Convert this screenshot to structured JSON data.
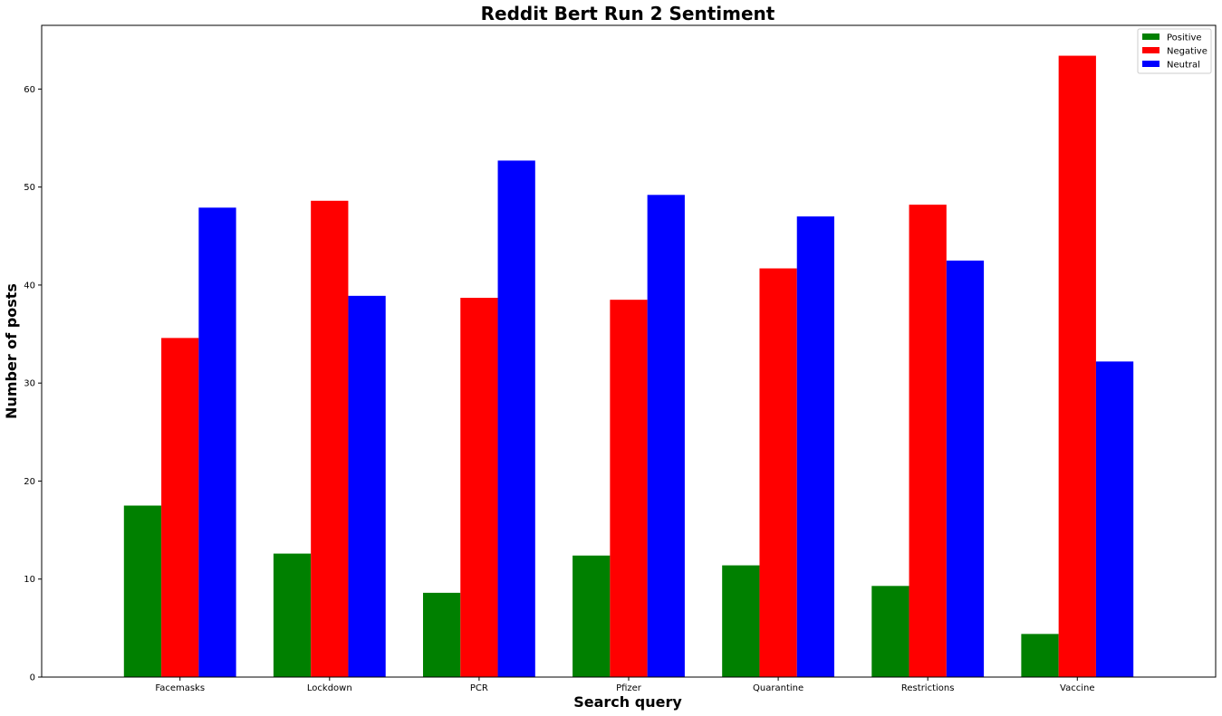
{
  "chart_data": {
    "type": "bar",
    "title": "Reddit Bert Run 2 Sentiment",
    "xlabel": "Search query",
    "ylabel": "Number of posts",
    "categories": [
      "Facemasks",
      "Lockdown",
      "PCR",
      "Pfizer",
      "Quarantine",
      "Restrictions",
      "Vaccine"
    ],
    "series": [
      {
        "name": "Positive",
        "color": "#008000",
        "values": [
          17.5,
          12.6,
          8.6,
          12.4,
          11.4,
          9.3,
          4.4
        ]
      },
      {
        "name": "Negative",
        "color": "#ff0000",
        "values": [
          34.6,
          48.6,
          38.7,
          38.5,
          41.7,
          48.2,
          63.4
        ]
      },
      {
        "name": "Neutral",
        "color": "#0000ff",
        "values": [
          47.9,
          38.9,
          52.7,
          49.2,
          47.0,
          42.5,
          32.2
        ]
      }
    ],
    "ylim": [
      0,
      66.5
    ],
    "yticks": [
      0,
      10,
      20,
      30,
      40,
      50,
      60
    ],
    "grid": false,
    "legend_position": "top-right"
  }
}
